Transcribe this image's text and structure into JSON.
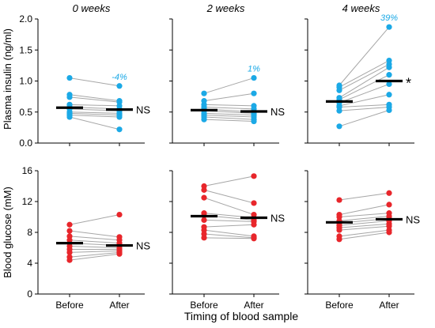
{
  "colors": {
    "insulin": "#1ba9e6",
    "glucose": "#e8262b",
    "line": "#a6a6a6",
    "axis": "#000000",
    "mean": "#000000"
  },
  "figure": {
    "xlabel": "Timing of blood sample",
    "row_ylabels": [
      "Plasma insulin (ng/ml)",
      "Blood glucose (mM)"
    ],
    "category_labels": [
      "Before",
      "After"
    ]
  },
  "chart_data": [
    {
      "type": "scatter",
      "title": "0 weeks",
      "ylabel": "Plasma insulin (ng/ml)",
      "categories": [
        "Before",
        "After"
      ],
      "ylim": [
        0,
        2.0
      ],
      "yticks": [
        "0.0",
        "0.5",
        "1.0",
        "1.5",
        "2.0"
      ],
      "ytick_values": [
        0,
        0.5,
        1.0,
        1.5,
        2.0
      ],
      "before": [
        1.05,
        0.78,
        0.74,
        0.62,
        0.58,
        0.55,
        0.5,
        0.48,
        0.45,
        0.42
      ],
      "after": [
        0.92,
        0.68,
        0.66,
        0.6,
        0.55,
        0.52,
        0.48,
        0.45,
        0.42,
        0.22
      ],
      "mean_before": 0.57,
      "mean_after": 0.54,
      "change_label": "-4%",
      "sig_label": "NS",
      "show_ylabel": true
    },
    {
      "type": "scatter",
      "title": "2 weeks",
      "categories": [
        "Before",
        "After"
      ],
      "ylim": [
        0,
        2.0
      ],
      "ytick_values": [
        0,
        0.5,
        1.0,
        1.5,
        2.0
      ],
      "before": [
        0.8,
        0.68,
        0.62,
        0.58,
        0.55,
        0.52,
        0.48,
        0.45,
        0.42,
        0.38
      ],
      "after": [
        1.05,
        0.8,
        0.6,
        0.55,
        0.5,
        0.48,
        0.45,
        0.42,
        0.38,
        0.35
      ],
      "mean_before": 0.53,
      "mean_after": 0.51,
      "change_label": "1%",
      "sig_label": "NS",
      "show_ylabel": false
    },
    {
      "type": "scatter",
      "title": "4 weeks",
      "categories": [
        "Before",
        "After"
      ],
      "ylim": [
        0,
        2.0
      ],
      "ytick_values": [
        0,
        0.5,
        1.0,
        1.5,
        2.0
      ],
      "before": [
        0.93,
        0.9,
        0.85,
        0.73,
        0.7,
        0.65,
        0.6,
        0.58,
        0.52,
        0.27
      ],
      "after": [
        1.87,
        1.33,
        1.27,
        1.22,
        1.1,
        0.95,
        0.78,
        0.62,
        0.58,
        0.53
      ],
      "mean_before": 0.67,
      "mean_after": 1.0,
      "change_label": "39%",
      "sig_label": "*",
      "show_ylabel": false
    },
    {
      "type": "scatter",
      "ylabel": "Blood glucose (mM)",
      "categories": [
        "Before",
        "After"
      ],
      "ylim": [
        0,
        16
      ],
      "yticks": [
        "0",
        "4",
        "8",
        "12",
        "16"
      ],
      "ytick_values": [
        0,
        4,
        8,
        12,
        16
      ],
      "before": [
        9.0,
        8.2,
        7.5,
        7.0,
        6.6,
        6.2,
        5.8,
        5.4,
        4.8,
        4.4
      ],
      "after": [
        10.3,
        7.4,
        7.0,
        6.6,
        6.3,
        6.0,
        5.8,
        5.6,
        5.4,
        5.2
      ],
      "mean_before": 6.6,
      "mean_after": 6.3,
      "change_label": "",
      "sig_label": "NS",
      "show_ylabel": true
    },
    {
      "type": "scatter",
      "categories": [
        "Before",
        "After"
      ],
      "ylim": [
        0,
        16
      ],
      "ytick_values": [
        0,
        4,
        8,
        12,
        16
      ],
      "before": [
        14.0,
        13.5,
        12.5,
        10.5,
        10.2,
        9.6,
        8.7,
        8.3,
        7.8,
        7.3
      ],
      "after": [
        15.3,
        11.8,
        10.3,
        9.9,
        9.6,
        9.4,
        9.0,
        7.5,
        7.3,
        7.2
      ],
      "mean_before": 10.1,
      "mean_after": 9.9,
      "change_label": "",
      "sig_label": "NS",
      "show_ylabel": false
    },
    {
      "type": "scatter",
      "categories": [
        "Before",
        "After"
      ],
      "ylim": [
        0,
        16
      ],
      "ytick_values": [
        0,
        4,
        8,
        12,
        16
      ],
      "before": [
        12.2,
        10.3,
        10.0,
        9.5,
        9.2,
        8.9,
        8.6,
        8.3,
        7.5,
        7.1
      ],
      "after": [
        13.1,
        11.6,
        10.5,
        10.1,
        9.8,
        9.5,
        9.1,
        8.8,
        8.3,
        8.0
      ],
      "mean_before": 9.3,
      "mean_after": 9.7,
      "change_label": "",
      "sig_label": "NS",
      "show_ylabel": false
    }
  ]
}
